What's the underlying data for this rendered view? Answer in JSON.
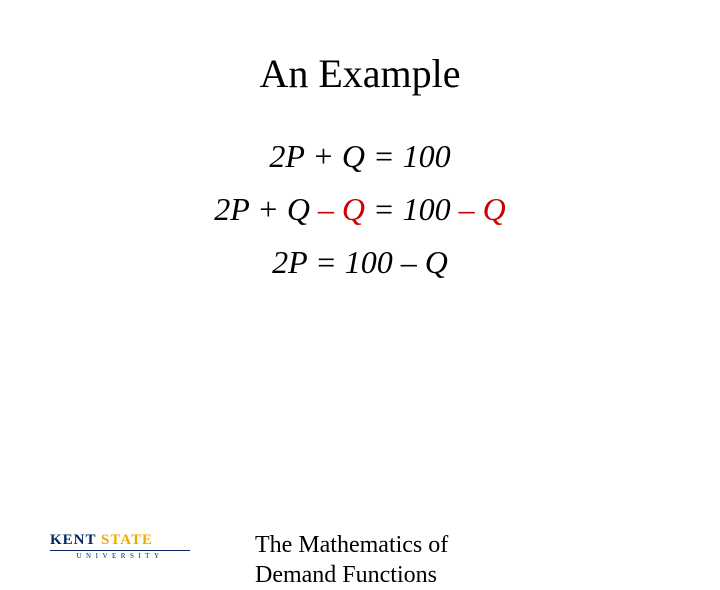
{
  "title": "An Example",
  "equations": {
    "line1": {
      "text": "2P  + Q = 100"
    },
    "line2": {
      "part1": "2P + Q ",
      "red1": "– Q",
      "part2": " = 100 ",
      "red2": "– Q"
    },
    "line3": {
      "text": "2P = 100 – Q"
    }
  },
  "logo": {
    "kent": "KENT",
    "state": " STATE",
    "university": "UNIVERSITY"
  },
  "footer": {
    "line1": "The Mathematics of",
    "line2": "Demand Functions"
  },
  "colors": {
    "red": "#cc0000",
    "navy": "#002664",
    "gold": "#eeaa00",
    "black": "#000000",
    "background": "#ffffff"
  },
  "typography": {
    "title_fontsize": 40,
    "equation_fontsize": 32,
    "footer_fontsize": 24,
    "font_family": "Times New Roman"
  }
}
